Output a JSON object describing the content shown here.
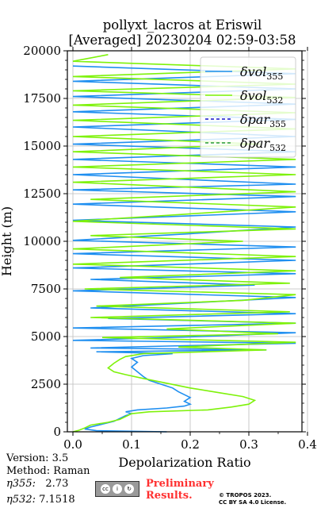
{
  "chart_data": {
    "type": "line",
    "title_line1": "pollyxt_lacros at Eriswil",
    "title_line2": "[Averaged] 20230204 02:59-03:58",
    "xlabel": "Depolarization Ratio",
    "ylabel": "Height (m)",
    "xlim": [
      0,
      0.4
    ],
    "ylim": [
      0,
      20000
    ],
    "xticks": [
      "0.0",
      "0.1",
      "0.2",
      "0.3",
      "0.4"
    ],
    "yticks": [
      "0",
      "2500",
      "5000",
      "7500",
      "10000",
      "12500",
      "15000",
      "17500",
      "20000"
    ],
    "grid": true,
    "legend_position": "top-right",
    "series": [
      {
        "name": "δvol,355",
        "key": "vol355",
        "color": "#1f8ff0",
        "style": "solid",
        "points": [
          [
            0.16,
            0
          ],
          [
            0.04,
            60
          ],
          [
            0.02,
            150
          ],
          [
            0.03,
            250
          ],
          [
            0.05,
            400
          ],
          [
            0.07,
            550
          ],
          [
            0.08,
            700
          ],
          [
            0.09,
            850
          ],
          [
            0.1,
            950
          ],
          [
            0.09,
            1050
          ],
          [
            0.11,
            1150
          ],
          [
            0.16,
            1250
          ],
          [
            0.19,
            1350
          ],
          [
            0.2,
            1450
          ],
          [
            0.19,
            1600
          ],
          [
            0.2,
            1800
          ],
          [
            0.19,
            1950
          ],
          [
            0.18,
            2100
          ],
          [
            0.17,
            2300
          ],
          [
            0.15,
            2500
          ],
          [
            0.13,
            2700
          ],
          [
            0.12,
            2900
          ],
          [
            0.11,
            3150
          ],
          [
            0.1,
            3400
          ],
          [
            0.11,
            3650
          ],
          [
            0.1,
            3850
          ],
          [
            0.12,
            4000
          ],
          [
            0.17,
            4100
          ],
          [
            0.04,
            4200
          ],
          [
            0.33,
            4300
          ],
          [
            0.03,
            4400
          ],
          [
            0.16,
            4500
          ],
          [
            0.38,
            4650
          ],
          [
            0.0,
            4800
          ],
          [
            0.22,
            5000
          ],
          [
            0.38,
            5200
          ],
          [
            0.0,
            5450
          ],
          [
            0.38,
            5700
          ],
          [
            0.06,
            5950
          ],
          [
            0.38,
            6200
          ],
          [
            0.03,
            6500
          ],
          [
            0.22,
            6800
          ],
          [
            0.38,
            7050
          ],
          [
            0.0,
            7400
          ],
          [
            0.31,
            7700
          ],
          [
            0.03,
            8000
          ],
          [
            0.38,
            8300
          ],
          [
            0.0,
            8600
          ],
          [
            0.38,
            9000
          ],
          [
            0.0,
            9350
          ],
          [
            0.38,
            9700
          ],
          [
            0.0,
            10050
          ],
          [
            0.2,
            10400
          ],
          [
            0.38,
            10750
          ],
          [
            0.0,
            11100
          ],
          [
            0.38,
            11550
          ],
          [
            0.0,
            11950
          ],
          [
            0.38,
            12350
          ],
          [
            0.0,
            12700
          ],
          [
            0.38,
            13000
          ],
          [
            0.0,
            13500
          ],
          [
            0.38,
            13900
          ],
          [
            0.0,
            14300
          ],
          [
            0.38,
            14700
          ],
          [
            0.0,
            15100
          ],
          [
            0.38,
            15500
          ],
          [
            0.0,
            16000
          ],
          [
            0.38,
            16400
          ],
          [
            0.0,
            16800
          ],
          [
            0.38,
            17200
          ],
          [
            0.0,
            17600
          ],
          [
            0.38,
            18000
          ],
          [
            0.0,
            18400
          ],
          [
            0.38,
            18800
          ],
          [
            0.0,
            19200
          ]
        ]
      },
      {
        "name": "δvol,532",
        "key": "vol532",
        "color": "#7ef20a",
        "style": "solid",
        "points": [
          [
            0.0,
            0
          ],
          [
            0.01,
            80
          ],
          [
            0.02,
            200
          ],
          [
            0.03,
            350
          ],
          [
            0.06,
            500
          ],
          [
            0.08,
            650
          ],
          [
            0.09,
            800
          ],
          [
            0.1,
            950
          ],
          [
            0.13,
            1050
          ],
          [
            0.23,
            1150
          ],
          [
            0.27,
            1300
          ],
          [
            0.3,
            1450
          ],
          [
            0.31,
            1650
          ],
          [
            0.29,
            1850
          ],
          [
            0.25,
            2050
          ],
          [
            0.2,
            2300
          ],
          [
            0.16,
            2550
          ],
          [
            0.12,
            2800
          ],
          [
            0.09,
            3000
          ],
          [
            0.07,
            3150
          ],
          [
            0.06,
            3350
          ],
          [
            0.07,
            3600
          ],
          [
            0.08,
            3800
          ],
          [
            0.09,
            3950
          ],
          [
            0.12,
            4100
          ],
          [
            0.33,
            4300
          ],
          [
            0.18,
            4450
          ],
          [
            0.38,
            4700
          ],
          [
            0.05,
            4950
          ],
          [
            0.35,
            5150
          ],
          [
            0.16,
            5400
          ],
          [
            0.38,
            5700
          ],
          [
            0.03,
            6000
          ],
          [
            0.37,
            6300
          ],
          [
            0.04,
            6600
          ],
          [
            0.29,
            6900
          ],
          [
            0.38,
            7200
          ],
          [
            0.02,
            7500
          ],
          [
            0.37,
            7800
          ],
          [
            0.08,
            8100
          ],
          [
            0.38,
            8450
          ],
          [
            0.0,
            8800
          ],
          [
            0.38,
            9200
          ],
          [
            0.0,
            9600
          ],
          [
            0.29,
            10000
          ],
          [
            0.03,
            10300
          ],
          [
            0.38,
            10650
          ],
          [
            0.0,
            11050
          ],
          [
            0.18,
            11400
          ],
          [
            0.38,
            11800
          ],
          [
            0.03,
            12200
          ],
          [
            0.38,
            12600
          ],
          [
            0.0,
            13100
          ],
          [
            0.38,
            13500
          ],
          [
            0.0,
            13900
          ],
          [
            0.38,
            14300
          ],
          [
            0.0,
            14700
          ],
          [
            0.32,
            15100
          ],
          [
            0.0,
            15500
          ],
          [
            0.38,
            15900
          ],
          [
            0.0,
            16350
          ],
          [
            0.38,
            16750
          ],
          [
            0.0,
            17150
          ],
          [
            0.38,
            17550
          ],
          [
            0.0,
            17900
          ],
          [
            0.38,
            18250
          ],
          [
            0.0,
            18650
          ],
          [
            0.38,
            19050
          ],
          [
            0.0,
            19450
          ],
          [
            0.06,
            19800
          ]
        ]
      },
      {
        "name": "δpar,355",
        "key": "par355",
        "color": "#1414c8",
        "style": "dashed",
        "points": []
      },
      {
        "name": "δpar,532",
        "key": "par532",
        "color": "#2a9a3a",
        "style": "dashed",
        "points": []
      }
    ]
  },
  "info": {
    "version": "Version: 3.5",
    "method": "Method: Raman",
    "eta355_label": "η355:",
    "eta355_value": "2.73",
    "eta532_label": "η532:",
    "eta532_value": "7.1518"
  },
  "license": {
    "badge_text": "cc",
    "preliminary_line1": "Preliminary",
    "preliminary_line2": "Results.",
    "tropos_line1": "© TROPOS 2023.",
    "tropos_line2": "CC BY SA 4.0 License."
  }
}
